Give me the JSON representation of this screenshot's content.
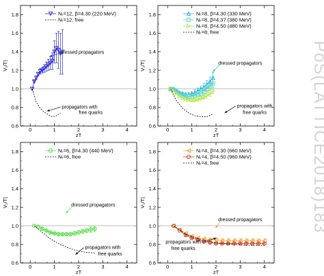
{
  "watermark": "PoS(LATTICE2018)183",
  "chart_data": [
    {
      "type": "scatter",
      "xlabel": "zT",
      "ylabel": "V₁/T|",
      "xlim": [
        -0.4,
        4.4
      ],
      "ylim": [
        0.6,
        1.9
      ],
      "xticks": [
        0,
        1,
        2,
        3,
        4
      ],
      "yticks": [
        0.6,
        0.8,
        1.0,
        1.2,
        1.4,
        1.6,
        1.8
      ],
      "reference_y": 1.0,
      "legend_position": "top-right",
      "series": [
        {
          "name": "Nₜ=12, β=4.30 (220 MeV)",
          "color": "#2a2ad0",
          "marker": "triangle-down",
          "x": [
            0.083,
            0.167,
            0.25,
            0.333,
            0.417,
            0.5,
            0.583,
            0.667,
            0.75,
            0.833,
            0.917,
            1.0,
            1.083,
            1.167,
            1.25,
            1.333
          ],
          "y": [
            1.0,
            1.08,
            1.12,
            1.16,
            1.19,
            1.2,
            1.22,
            1.24,
            1.26,
            1.28,
            1.3,
            1.4,
            1.44,
            1.42,
            1.38,
            1.4
          ],
          "err": [
            0.0,
            0.01,
            0.02,
            0.02,
            0.03,
            0.03,
            0.04,
            0.05,
            0.06,
            0.07,
            0.09,
            0.12,
            0.16,
            0.2,
            0.22,
            0.24
          ]
        },
        {
          "name": "Nₜ=12, free",
          "color": "#000000",
          "style": "dashed",
          "x": [
            0.083,
            0.25,
            0.417,
            0.583,
            0.75,
            0.917,
            1.083,
            1.25
          ],
          "y": [
            1.0,
            0.86,
            0.79,
            0.75,
            0.72,
            0.7,
            0.71,
            0.74
          ]
        }
      ],
      "annotations": [
        {
          "text": "dressed propagators",
          "color": "#2a2ad0",
          "x": 2.15,
          "y": 1.38
        },
        {
          "text": "propagators with",
          "color": "#000000",
          "x": 2.05,
          "y": 0.79
        },
        {
          "text": "free quarks",
          "color": "#000000",
          "x": 2.5,
          "y": 0.73
        }
      ]
    },
    {
      "type": "scatter",
      "xlabel": "zT",
      "ylabel": "V₁/T|",
      "xlim": [
        -0.4,
        4.4
      ],
      "ylim": [
        0.6,
        1.9
      ],
      "xticks": [
        0,
        1,
        2,
        3,
        4
      ],
      "yticks": [
        0.6,
        0.8,
        1.0,
        1.2,
        1.4,
        1.6,
        1.8
      ],
      "reference_y": 1.0,
      "legend_position": "top-right",
      "series": [
        {
          "name": "Nₜ=8, β=4.30 (330 MeV)",
          "color": "#2ab0e0",
          "marker": "triangle-up",
          "x": [
            0.125,
            0.25,
            0.375,
            0.5,
            0.625,
            0.75,
            0.875,
            1.0,
            1.125,
            1.25,
            1.375,
            1.5,
            1.625,
            1.75,
            1.875
          ],
          "y": [
            1.0,
            1.0,
            0.98,
            0.96,
            0.95,
            0.94,
            0.94,
            0.95,
            0.96,
            0.98,
            1.0,
            1.02,
            1.05,
            1.08,
            1.12
          ],
          "err": [
            0.0,
            0.0,
            0.01,
            0.01,
            0.01,
            0.02,
            0.02,
            0.02,
            0.03,
            0.03,
            0.03,
            0.04,
            0.04,
            0.05,
            0.06
          ]
        },
        {
          "name": "Nₜ=8, β=4.37 (380 MeV)",
          "color": "#5ad4c4",
          "marker": "square",
          "x": [
            0.125,
            0.25,
            0.375,
            0.5,
            0.625,
            0.75,
            0.875,
            1.0,
            1.125,
            1.25,
            1.375,
            1.5,
            1.625,
            1.75,
            1.875
          ],
          "y": [
            1.0,
            0.99,
            0.97,
            0.95,
            0.93,
            0.92,
            0.92,
            0.92,
            0.93,
            0.94,
            0.95,
            0.97,
            1.0,
            1.03,
            1.06
          ],
          "err": [
            0.0,
            0.0,
            0.01,
            0.01,
            0.01,
            0.01,
            0.02,
            0.02,
            0.02,
            0.02,
            0.03,
            0.03,
            0.03,
            0.04,
            0.04
          ]
        },
        {
          "name": "Nₜ=8, β=4.50 (480 MeV)",
          "color": "#b4e44c",
          "marker": "triangle-right",
          "x": [
            0.125,
            0.25,
            0.375,
            0.5,
            0.625,
            0.75,
            0.875,
            1.0,
            1.125,
            1.25,
            1.375,
            1.5,
            1.625,
            1.75,
            1.875
          ],
          "y": [
            1.0,
            0.98,
            0.95,
            0.92,
            0.9,
            0.89,
            0.88,
            0.88,
            0.88,
            0.89,
            0.9,
            0.91,
            0.93,
            0.95,
            0.98
          ],
          "err": [
            0.0,
            0.0,
            0.01,
            0.01,
            0.01,
            0.01,
            0.01,
            0.02,
            0.02,
            0.02,
            0.02,
            0.02,
            0.03,
            0.03,
            0.03
          ]
        },
        {
          "name": "Nₜ=8, free",
          "color": "#000000",
          "style": "dashed",
          "x": [
            0.125,
            0.375,
            0.625,
            0.875,
            1.125,
            1.375,
            1.625,
            1.875
          ],
          "y": [
            1.0,
            0.87,
            0.79,
            0.74,
            0.71,
            0.7,
            0.7,
            0.73
          ]
        }
      ],
      "annotations": [
        {
          "text": "dressed propagators",
          "color": "#2ab0e0",
          "x": 3.0,
          "y": 1.26
        },
        {
          "text": "propagators with",
          "color": "#000000",
          "x": 3.6,
          "y": 0.8
        },
        {
          "text": "free quarks",
          "color": "#000000",
          "x": 3.6,
          "y": 0.73
        }
      ]
    },
    {
      "type": "scatter",
      "xlabel": "zT",
      "ylabel": "V₁/T|",
      "xlim": [
        -0.4,
        4.4
      ],
      "ylim": [
        0.6,
        1.9
      ],
      "xticks": [
        0,
        1,
        2,
        3,
        4
      ],
      "yticks": [
        0.6,
        0.8,
        1.0,
        1.2,
        1.4,
        1.6,
        1.8
      ],
      "reference_y": 1.0,
      "legend_position": "top-right",
      "series": [
        {
          "name": "Nₜ=6, β=4.30 (440 MeV)",
          "color": "#44dd33",
          "marker": "circle",
          "x": [
            0.167,
            0.333,
            0.5,
            0.667,
            0.833,
            1.0,
            1.167,
            1.333,
            1.5,
            1.667,
            1.833,
            2.0,
            2.167,
            2.333,
            2.5,
            2.667
          ],
          "y": [
            1.0,
            0.99,
            0.97,
            0.95,
            0.93,
            0.92,
            0.91,
            0.91,
            0.91,
            0.91,
            0.92,
            0.93,
            0.94,
            0.95,
            0.96,
            0.97
          ],
          "err": [
            0.0,
            0.0,
            0.01,
            0.01,
            0.01,
            0.01,
            0.01,
            0.01,
            0.01,
            0.01,
            0.02,
            0.02,
            0.02,
            0.02,
            0.03,
            0.03
          ]
        },
        {
          "name": "Nₜ=6, free",
          "color": "#000000",
          "style": "dashed",
          "x": [
            0.167,
            0.5,
            0.833,
            1.167,
            1.5,
            1.833,
            2.167,
            2.5,
            2.667
          ],
          "y": [
            1.0,
            0.93,
            0.86,
            0.81,
            0.77,
            0.74,
            0.72,
            0.71,
            0.71
          ]
        }
      ],
      "annotations": [
        {
          "text": "dressed propagators",
          "color": "#44dd33",
          "x": 2.6,
          "y": 1.21
        },
        {
          "text": "propagators with",
          "color": "#000000",
          "x": 3.0,
          "y": 0.75
        },
        {
          "text": "free quarks",
          "color": "#000000",
          "x": 3.3,
          "y": 0.68
        }
      ]
    },
    {
      "type": "scatter",
      "xlabel": "zT",
      "ylabel": "V₁/T|",
      "xlim": [
        -0.4,
        4.4
      ],
      "ylim": [
        0.6,
        1.9
      ],
      "xticks": [
        0,
        1,
        2,
        3,
        4
      ],
      "yticks": [
        0.6,
        0.8,
        1.0,
        1.2,
        1.4,
        1.6,
        1.8
      ],
      "reference_y": 1.0,
      "legend_position": "top-right",
      "series": [
        {
          "name": "Nₜ=4, β=4.30 (660 MeV)",
          "color": "#f0a030",
          "marker": "triangle-left",
          "x": [
            0.25,
            0.5,
            0.75,
            1.0,
            1.25,
            1.5,
            1.75,
            2.0,
            2.25,
            2.5,
            2.75,
            3.0,
            3.25,
            3.5,
            3.75,
            4.0
          ],
          "y": [
            1.0,
            0.96,
            0.92,
            0.89,
            0.87,
            0.86,
            0.85,
            0.85,
            0.84,
            0.84,
            0.84,
            0.84,
            0.84,
            0.84,
            0.84,
            0.84
          ],
          "err": [
            0.0,
            0.0,
            0.01,
            0.01,
            0.01,
            0.01,
            0.02,
            0.02,
            0.02,
            0.02,
            0.02,
            0.02,
            0.02,
            0.02,
            0.02,
            0.02
          ]
        },
        {
          "name": "Nₜ=4, β=4.50 (960 MeV)",
          "color": "#d03a20",
          "marker": "circle",
          "x": [
            0.25,
            0.5,
            0.75,
            1.0,
            1.25,
            1.5,
            1.75,
            2.0,
            2.25,
            2.5,
            2.75,
            3.0,
            3.25,
            3.5,
            3.75,
            4.0
          ],
          "y": [
            1.0,
            0.95,
            0.9,
            0.87,
            0.85,
            0.83,
            0.82,
            0.81,
            0.81,
            0.81,
            0.81,
            0.81,
            0.81,
            0.81,
            0.81,
            0.81
          ],
          "err": [
            0.0,
            0.0,
            0.01,
            0.01,
            0.01,
            0.01,
            0.01,
            0.01,
            0.01,
            0.01,
            0.01,
            0.01,
            0.01,
            0.01,
            0.01,
            0.01
          ]
        },
        {
          "name": "Nₜ=4, free",
          "color": "#000000",
          "style": "dashed",
          "x": [
            0.25,
            0.75,
            1.25,
            1.75,
            2.25,
            2.75,
            3.25,
            3.75,
            4.0
          ],
          "y": [
            1.0,
            0.91,
            0.86,
            0.83,
            0.81,
            0.8,
            0.79,
            0.79,
            0.79
          ]
        }
      ],
      "annotations": [
        {
          "text": "dressed propagators",
          "color": "#f0a030",
          "x": 3.0,
          "y": 1.05
        },
        {
          "text": "propagators with",
          "color": "#000000",
          "x": 0.65,
          "y": 0.81
        },
        {
          "text": "free quarks",
          "color": "#000000",
          "x": 0.65,
          "y": 0.74
        }
      ]
    }
  ]
}
